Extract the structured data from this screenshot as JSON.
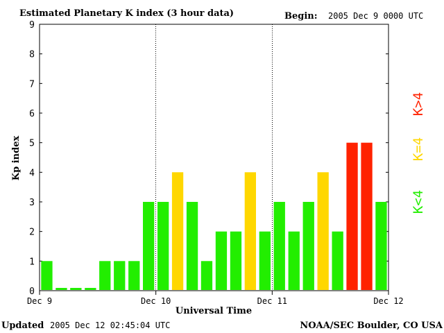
{
  "header": {
    "title": "Estimated Planetary K index (3 hour data)",
    "begin_label": "Begin:",
    "begin_value": "2005 Dec 9 0000 UTC"
  },
  "footer": {
    "updated_label": "Updated",
    "updated_value": "2005 Dec 12 02:45:04 UTC",
    "source": "NOAA/SEC Boulder, CO USA"
  },
  "legend": [
    {
      "label": "K>4",
      "color": "#ff2200"
    },
    {
      "label": "K=4",
      "color": "#ffd700"
    },
    {
      "label": "K<4",
      "color": "#22ee00"
    }
  ],
  "colors": {
    "low": "#22ee00",
    "equal": "#ffd700",
    "high": "#ff2200"
  },
  "chart_data": {
    "type": "bar",
    "title": "Estimated Planetary K index (3 hour data)",
    "xlabel": "Universal Time",
    "ylabel": "Kp index",
    "ylim": [
      0,
      9
    ],
    "yticks": [
      0,
      1,
      2,
      3,
      4,
      5,
      6,
      7,
      8,
      9
    ],
    "x_tick_labels": [
      "Dec 9",
      "Dec 10",
      "Dec 11",
      "Dec 12"
    ],
    "day_dividers": [
      "Dec 10",
      "Dec 11"
    ],
    "interval_hours": 3,
    "values": [
      1,
      0,
      0,
      0,
      1,
      1,
      1,
      3,
      3,
      4,
      3,
      1,
      2,
      2,
      4,
      2,
      3,
      2,
      3,
      4,
      2,
      5,
      5,
      3
    ]
  }
}
